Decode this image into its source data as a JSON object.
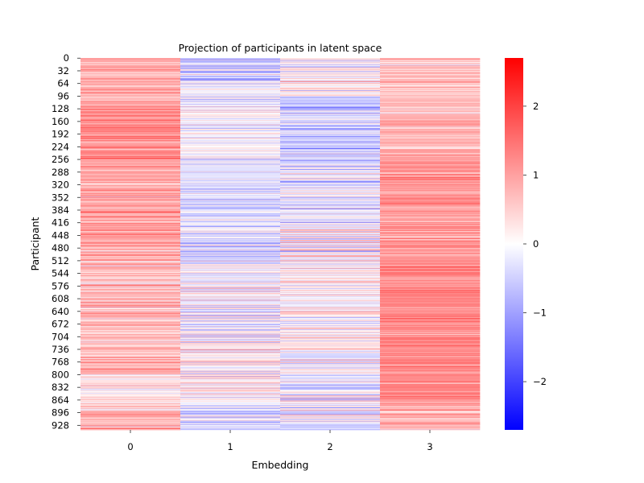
{
  "chart_data": {
    "type": "heatmap",
    "title": "Projection of participants in latent space",
    "xlabel": "Embedding",
    "ylabel": "Participant",
    "x_categories": [
      "0",
      "1",
      "2",
      "3"
    ],
    "y_tick_labels": [
      "0",
      "32",
      "64",
      "96",
      "128",
      "160",
      "192",
      "224",
      "256",
      "288",
      "320",
      "352",
      "384",
      "416",
      "448",
      "480",
      "512",
      "544",
      "576",
      "608",
      "640",
      "672",
      "704",
      "736",
      "768",
      "800",
      "832",
      "864",
      "896",
      "928"
    ],
    "n_rows": 940,
    "colormap": "bwr",
    "colors": {
      "low": "#0000ff",
      "mid": "#ffffff",
      "high": "#ff0000"
    },
    "vmin": -2.7,
    "vmax": 2.7,
    "colorbar_ticks": [
      "−2",
      "−1",
      "0",
      "1",
      "2"
    ],
    "colorbar_tick_values": [
      -2,
      -1,
      0,
      1,
      2
    ],
    "column_profiles": [
      {
        "embedding": "0",
        "typical_range": [
          -0.6,
          2.0
        ],
        "segments": [
          {
            "rows": [
              0,
              128
            ],
            "mean": 0.9,
            "spread": 0.35
          },
          {
            "rows": [
              128,
              256
            ],
            "mean": 1.2,
            "spread": 0.4
          },
          {
            "rows": [
              256,
              512
            ],
            "mean": 1.0,
            "spread": 0.45
          },
          {
            "rows": [
              512,
              800
            ],
            "mean": 0.7,
            "spread": 0.5
          },
          {
            "rows": [
              800,
              880
            ],
            "mean": 0.2,
            "spread": 0.4
          },
          {
            "rows": [
              880,
              940
            ],
            "mean": 0.9,
            "spread": 0.5
          }
        ]
      },
      {
        "embedding": "1",
        "typical_range": [
          -2.2,
          1.5
        ],
        "segments": [
          {
            "rows": [
              0,
              64
            ],
            "mean": -0.4,
            "spread": 0.6
          },
          {
            "rows": [
              64,
              256
            ],
            "mean": -0.1,
            "spread": 0.4
          },
          {
            "rows": [
              256,
              512
            ],
            "mean": -0.3,
            "spread": 0.5
          },
          {
            "rows": [
              512,
              704
            ],
            "mean": -0.2,
            "spread": 0.6
          },
          {
            "rows": [
              704,
              880
            ],
            "mean": 0.1,
            "spread": 0.6
          },
          {
            "rows": [
              880,
              940
            ],
            "mean": -0.4,
            "spread": 0.5
          }
        ]
      },
      {
        "embedding": "2",
        "typical_range": [
          -2.3,
          1.3
        ],
        "segments": [
          {
            "rows": [
              0,
              96
            ],
            "mean": 0.1,
            "spread": 0.5
          },
          {
            "rows": [
              96,
              256
            ],
            "mean": -0.5,
            "spread": 0.5
          },
          {
            "rows": [
              256,
              416
            ],
            "mean": -0.2,
            "spread": 0.5
          },
          {
            "rows": [
              416,
              512
            ],
            "mean": 0.0,
            "spread": 0.8
          },
          {
            "rows": [
              512,
              736
            ],
            "mean": 0.1,
            "spread": 0.5
          },
          {
            "rows": [
              736,
              940
            ],
            "mean": -0.2,
            "spread": 0.6
          }
        ]
      },
      {
        "embedding": "3",
        "typical_range": [
          -0.8,
          2.3
        ],
        "segments": [
          {
            "rows": [
              0,
              256
            ],
            "mean": 0.7,
            "spread": 0.4
          },
          {
            "rows": [
              256,
              512
            ],
            "mean": 1.1,
            "spread": 0.35
          },
          {
            "rows": [
              512,
              880
            ],
            "mean": 1.3,
            "spread": 0.35
          },
          {
            "rows": [
              880,
              940
            ],
            "mean": 0.8,
            "spread": 0.5
          }
        ]
      }
    ]
  }
}
